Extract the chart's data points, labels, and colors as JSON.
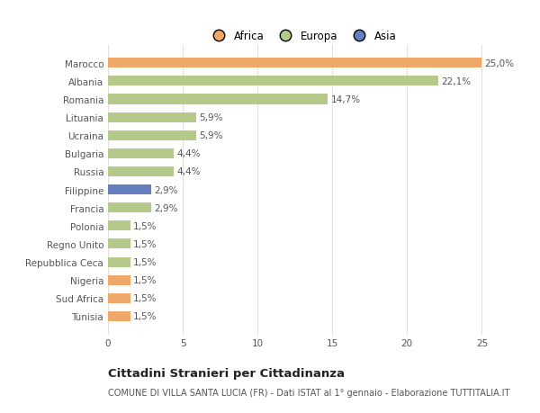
{
  "categories": [
    "Tunisia",
    "Sud Africa",
    "Nigeria",
    "Repubblica Ceca",
    "Regno Unito",
    "Polonia",
    "Francia",
    "Filippine",
    "Russia",
    "Bulgaria",
    "Ucraina",
    "Lituania",
    "Romania",
    "Albania",
    "Marocco"
  ],
  "values": [
    1.5,
    1.5,
    1.5,
    1.5,
    1.5,
    1.5,
    2.9,
    2.9,
    4.4,
    4.4,
    5.9,
    5.9,
    14.7,
    22.1,
    25.0
  ],
  "labels": [
    "1,5%",
    "1,5%",
    "1,5%",
    "1,5%",
    "1,5%",
    "1,5%",
    "2,9%",
    "2,9%",
    "4,4%",
    "4,4%",
    "5,9%",
    "5,9%",
    "14,7%",
    "22,1%",
    "25,0%"
  ],
  "colors": [
    "#f0a868",
    "#f0a868",
    "#f0a868",
    "#b5c98a",
    "#b5c98a",
    "#b5c98a",
    "#b5c98a",
    "#6680bf",
    "#b5c98a",
    "#b5c98a",
    "#b5c98a",
    "#b5c98a",
    "#b5c98a",
    "#b5c98a",
    "#f0a868"
  ],
  "legend": [
    {
      "label": "Africa",
      "color": "#f0a868"
    },
    {
      "label": "Europa",
      "color": "#b5c98a"
    },
    {
      "label": "Asia",
      "color": "#6680bf"
    }
  ],
  "xlim": [
    0,
    26
  ],
  "xticks": [
    0,
    5,
    10,
    15,
    20,
    25
  ],
  "title": "Cittadini Stranieri per Cittadinanza",
  "subtitle": "COMUNE DI VILLA SANTA LUCIA (FR) - Dati ISTAT al 1° gennaio - Elaborazione TUTTITALIA.IT",
  "bg_color": "#ffffff",
  "grid_color": "#e0e0e0",
  "bar_height": 0.55,
  "label_fontsize": 7.5,
  "tick_fontsize": 7.5,
  "title_fontsize": 9.5,
  "subtitle_fontsize": 7.0
}
